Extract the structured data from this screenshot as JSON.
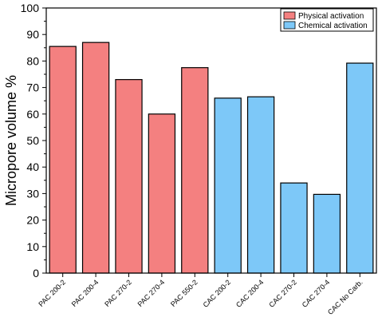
{
  "chart_data": {
    "type": "bar",
    "title": "",
    "xlabel": "",
    "ylabel": "Micropore volume %",
    "ylim": [
      0,
      100
    ],
    "yticks": [
      0,
      10,
      20,
      30,
      40,
      50,
      60,
      70,
      80,
      90,
      100
    ],
    "grid": false,
    "legend_position": "top-right",
    "categories": [
      "PAC 200-2",
      "PAC 200-4",
      "PAC 270-2",
      "PAC 270-4",
      "PAC 550-2",
      "CAC 200-2",
      "CAC 200-4",
      "CAC 270-2",
      "CAC 270-4",
      "CAC No Carb."
    ],
    "values": [
      85.5,
      87,
      73,
      60,
      77.5,
      66,
      66.5,
      34,
      29.7,
      79.2
    ],
    "series": [
      {
        "name": "Physical activation",
        "color": "#f48080",
        "category_indices": [
          0,
          1,
          2,
          3,
          4
        ]
      },
      {
        "name": "Chemical activation",
        "color": "#7dc8f8",
        "category_indices": [
          5,
          6,
          7,
          8,
          9
        ]
      }
    ]
  }
}
